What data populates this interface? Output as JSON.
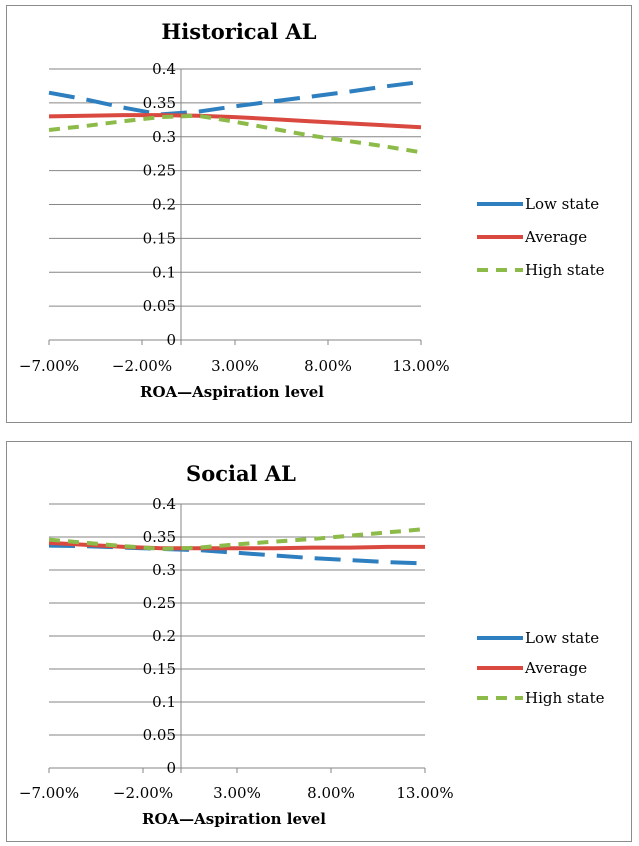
{
  "chart_data": [
    {
      "type": "line",
      "title": "Historical  AL",
      "xlabel": "ROA—Aspiration level",
      "ylabel": "",
      "x_tick_labels": [
        "−7.00%",
        "−2.00%",
        "3.00%",
        "8.00%",
        "13.00%"
      ],
      "x_range": [
        -7,
        13
      ],
      "y_tick_labels": [
        "0",
        "0.05",
        "0.1",
        "0.15",
        "0.2",
        "0.25",
        "0.3",
        "0.35",
        "0.4"
      ],
      "ylim": [
        0,
        0.4
      ],
      "grid": "horizontal",
      "legend_position": "right",
      "series": [
        {
          "name": "Low state",
          "color": "#2e7fbf",
          "style": "long-dash",
          "x": [
            -7,
            -5,
            -3,
            -1,
            1,
            3,
            5,
            7,
            9,
            11,
            13
          ],
          "values": [
            0.365,
            0.355,
            0.343,
            0.333,
            0.337,
            0.345,
            0.352,
            0.359,
            0.366,
            0.374,
            0.381
          ]
        },
        {
          "name": "Average",
          "color": "#d9493f",
          "style": "solid",
          "x": [
            -7,
            -5,
            -3,
            -1,
            1,
            3,
            5,
            7,
            9,
            11,
            13
          ],
          "values": [
            0.33,
            0.331,
            0.332,
            0.332,
            0.331,
            0.329,
            0.326,
            0.323,
            0.32,
            0.317,
            0.314
          ]
        },
        {
          "name": "High state",
          "color": "#8dbb4a",
          "style": "dashed",
          "x": [
            -7,
            -5,
            -3,
            -1,
            1,
            3,
            5,
            7,
            9,
            11,
            13
          ],
          "values": [
            0.31,
            0.316,
            0.323,
            0.329,
            0.331,
            0.322,
            0.312,
            0.302,
            0.294,
            0.286,
            0.277
          ]
        }
      ]
    },
    {
      "type": "line",
      "title": "Social AL",
      "xlabel": "ROA—Aspiration level",
      "ylabel": "",
      "x_tick_labels": [
        "−7.00%",
        "−2.00%",
        "3.00%",
        "8.00%",
        "13.00%"
      ],
      "x_range": [
        -7,
        13
      ],
      "y_tick_labels": [
        "0",
        "0.05",
        "0.1",
        "0.15",
        "0.2",
        "0.25",
        "0.3",
        "0.35",
        "0.4"
      ],
      "ylim": [
        0,
        0.4
      ],
      "grid": "horizontal",
      "legend_position": "right",
      "series": [
        {
          "name": "Low state",
          "color": "#2e7fbf",
          "style": "long-dash",
          "x": [
            -7,
            -5,
            -3,
            -1,
            1,
            3,
            5,
            7,
            9,
            11,
            13
          ],
          "values": [
            0.337,
            0.336,
            0.334,
            0.332,
            0.33,
            0.326,
            0.322,
            0.318,
            0.315,
            0.312,
            0.31
          ]
        },
        {
          "name": "Average",
          "color": "#d9493f",
          "style": "solid",
          "x": [
            -7,
            -5,
            -3,
            -1,
            1,
            3,
            5,
            7,
            9,
            11,
            13
          ],
          "values": [
            0.341,
            0.338,
            0.335,
            0.333,
            0.333,
            0.333,
            0.333,
            0.334,
            0.334,
            0.335,
            0.335
          ]
        },
        {
          "name": "High state",
          "color": "#8dbb4a",
          "style": "dashed",
          "x": [
            -7,
            -5,
            -3,
            -1,
            1,
            3,
            5,
            7,
            9,
            11,
            13
          ],
          "values": [
            0.346,
            0.341,
            0.336,
            0.332,
            0.334,
            0.339,
            0.343,
            0.347,
            0.352,
            0.357,
            0.362
          ]
        }
      ]
    }
  ]
}
